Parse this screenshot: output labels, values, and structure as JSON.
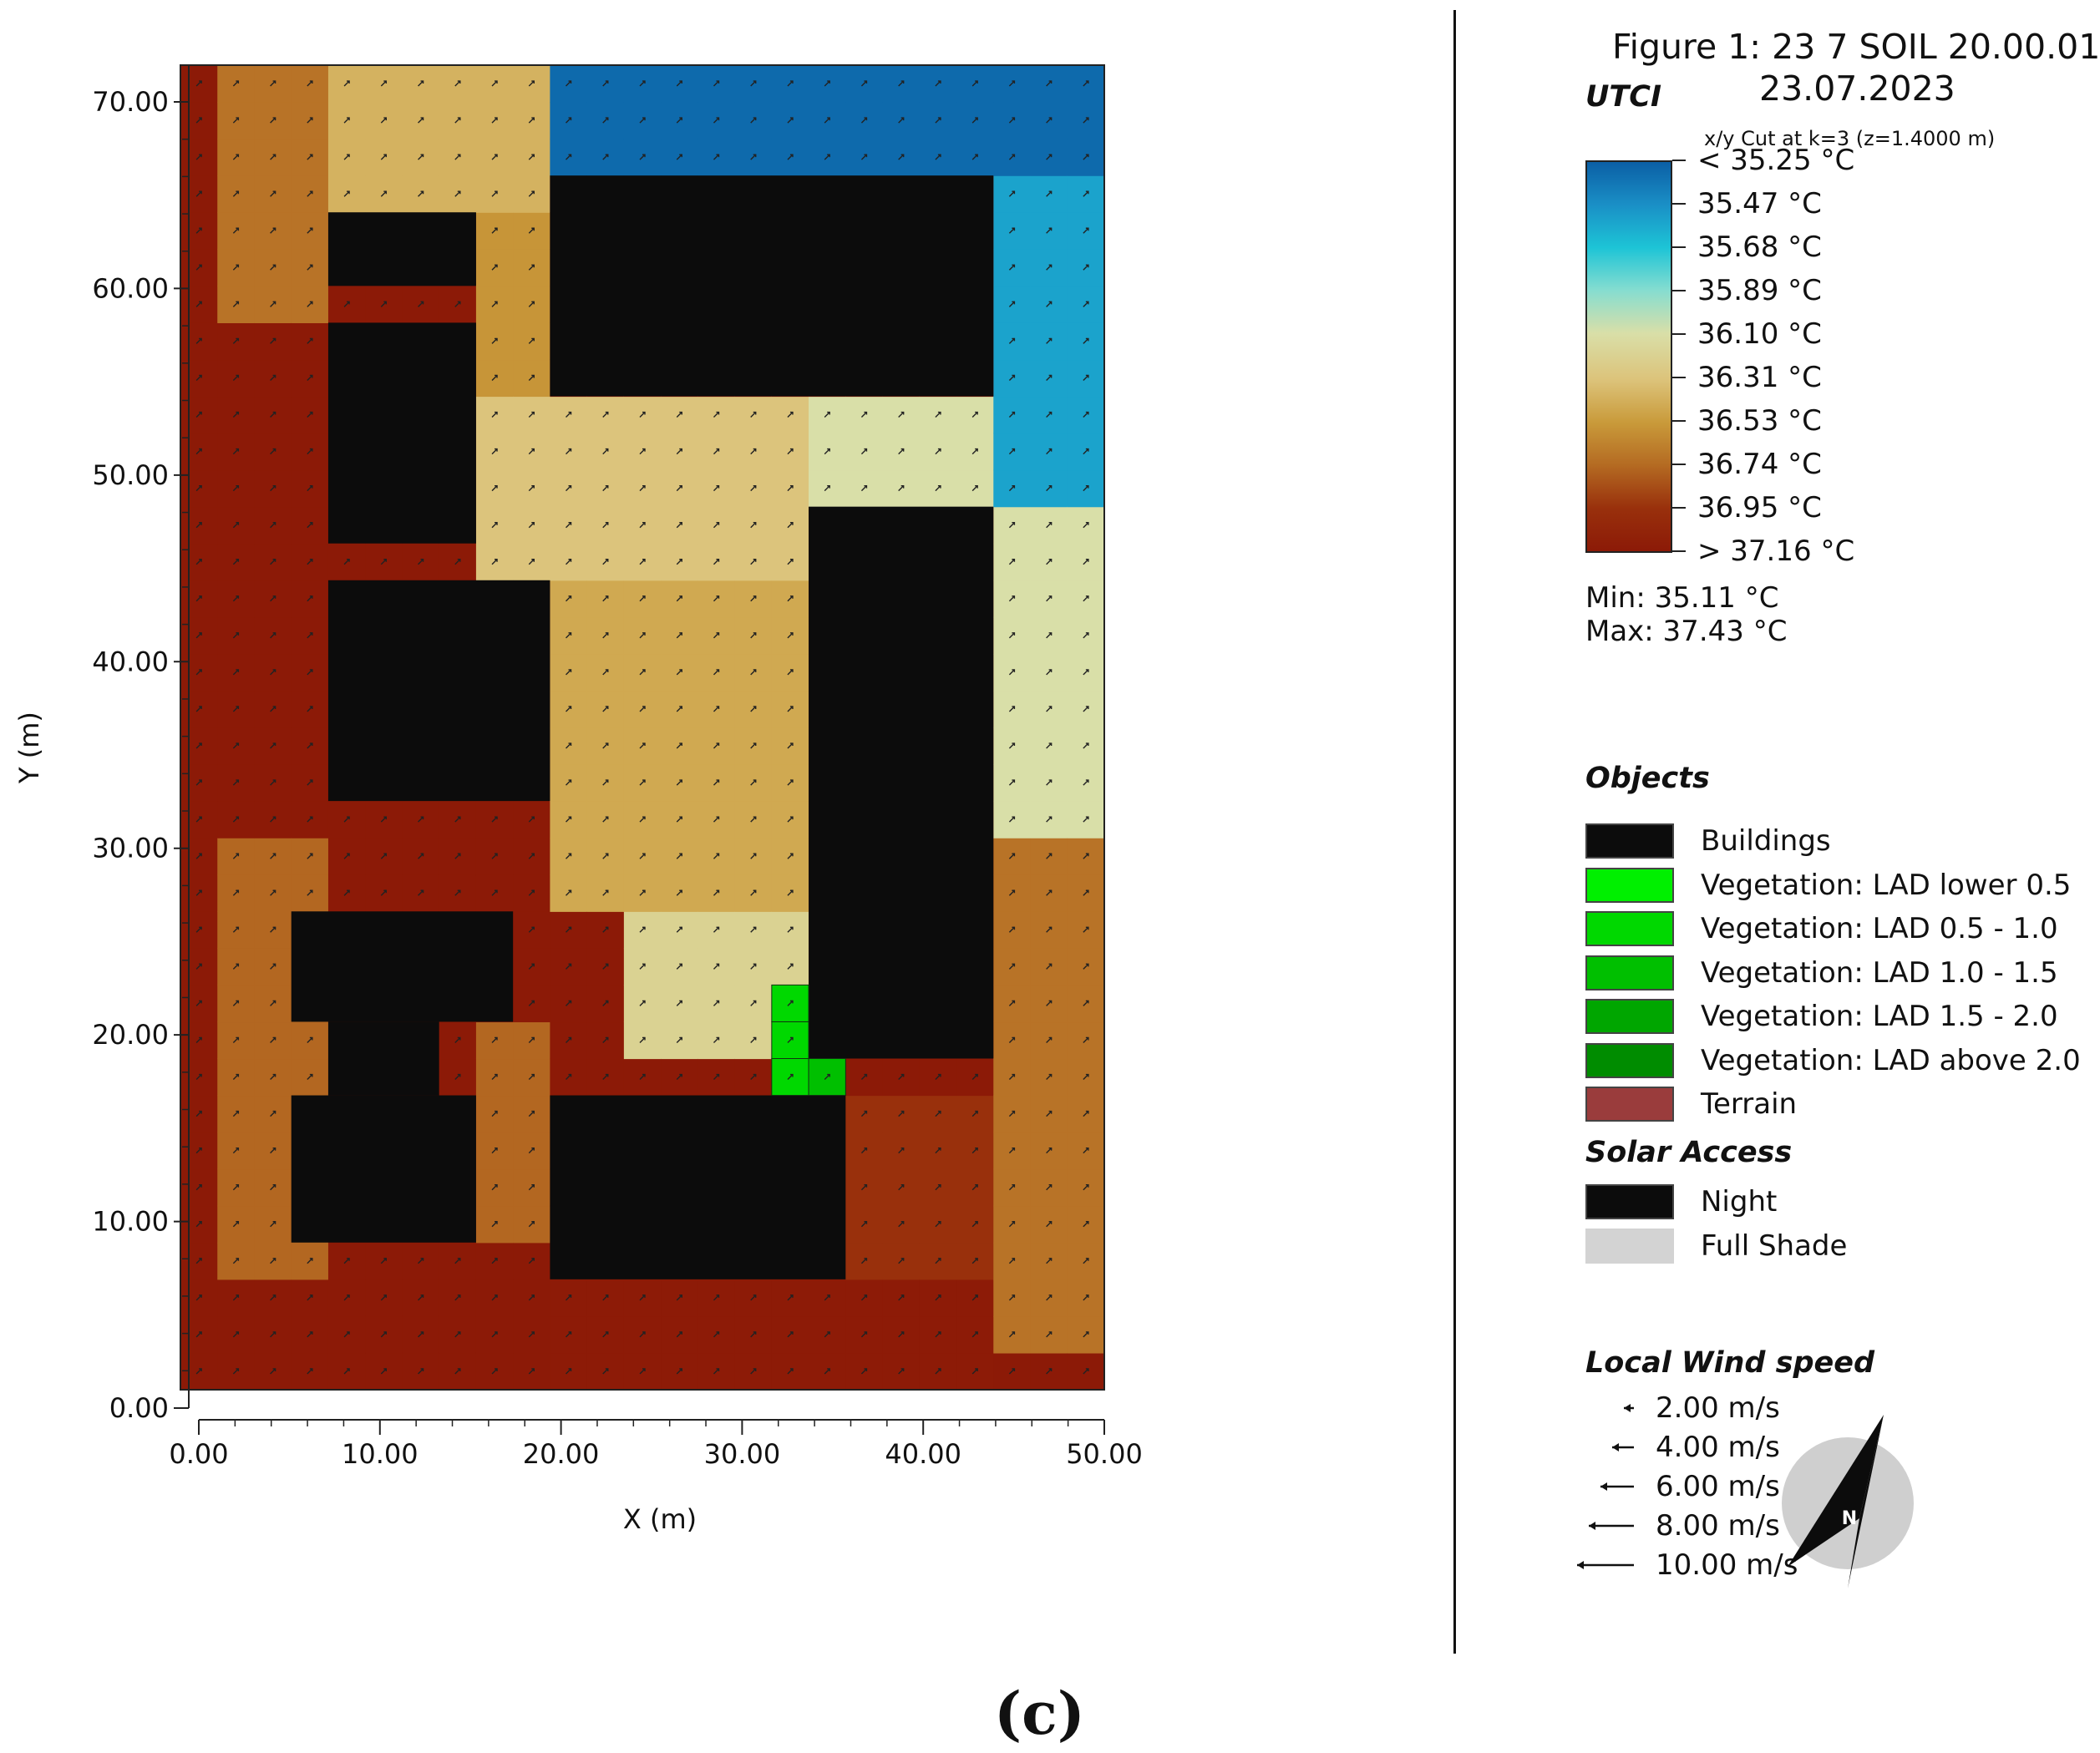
{
  "figure": {
    "title": "Figure 1: 23 7 SOIL 20.00.01",
    "date": "23.07.2023",
    "cut_info": "x/y Cut at k=3 (z=1.4000 m)",
    "caption": "(c)"
  },
  "legend": {
    "utci_title": "UTCI",
    "colorbar_labels": [
      "< 35.25 °C",
      "35.47  °C",
      "35.68  °C",
      "35.89  °C",
      "36.10  °C",
      "36.31  °C",
      "36.53  °C",
      "36.74  °C",
      "36.95  °C",
      "> 37.16 °C"
    ],
    "colorbar_colors": [
      "#0b5fa5",
      "#1a8fc6",
      "#1dc4d6",
      "#86ddd0",
      "#d9dfa8",
      "#dcc37a",
      "#c99a3a",
      "#b46a22",
      "#99300c",
      "#8c1a07"
    ],
    "min_text": "Min: 35.11 °C",
    "max_text": "Max: 37.43 °C",
    "objects_title": "Objects",
    "objects": [
      {
        "label": "Buildings",
        "color": "#0c0c0c"
      },
      {
        "label": "Vegetation: LAD lower 0.5",
        "color": "#00f000"
      },
      {
        "label": "Vegetation:  LAD 0.5 - 1.0",
        "color": "#00d800"
      },
      {
        "label": "Vegetation:  LAD 1.0 - 1.5",
        "color": "#00bf00"
      },
      {
        "label": "Vegetation:  LAD 1.5 - 2.0",
        "color": "#00a600"
      },
      {
        "label": "Vegetation:  LAD above 2.0",
        "color": "#008c00"
      },
      {
        "label": "Terrain",
        "color": "#9a3c3c"
      }
    ],
    "solar_title": "Solar Access",
    "solar": [
      {
        "label": "Night",
        "color": "#0c0c0c"
      },
      {
        "label": "Full Shade",
        "color": "#d3d3d3"
      }
    ],
    "wind_title": "Local Wind speed",
    "wind": [
      "2.00 m/s",
      "4.00 m/s",
      "6.00 m/s",
      "8.00 m/s",
      "10.00 m/s"
    ],
    "north_label": "N"
  },
  "chart_data": {
    "type": "heatmap",
    "variable": "UTCI (°C)",
    "xlabel": "X (m)",
    "ylabel": "Y (m)",
    "xlim": [
      0,
      50
    ],
    "ylim": [
      0,
      72
    ],
    "x_ticks": [
      "0.00",
      "10.00",
      "20.00",
      "30.00",
      "40.00",
      "50.00"
    ],
    "y_ticks": [
      "0.00",
      "10.00",
      "20.00",
      "30.00",
      "40.00",
      "50.00",
      "60.00",
      "70.00"
    ],
    "min": 35.11,
    "max": 37.43,
    "buildings": [
      {
        "x": [
          20,
          44
        ],
        "y": [
          54,
          66
        ]
      },
      {
        "x": [
          8,
          16
        ],
        "y": [
          60,
          64
        ]
      },
      {
        "x": [
          8,
          16
        ],
        "y": [
          46,
          58
        ]
      },
      {
        "x": [
          8,
          20
        ],
        "y": [
          32,
          44
        ]
      },
      {
        "x": [
          34,
          44
        ],
        "y": [
          18,
          48
        ]
      },
      {
        "x": [
          6,
          18
        ],
        "y": [
          20,
          26
        ]
      },
      {
        "x": [
          8,
          14
        ],
        "y": [
          16,
          20
        ]
      },
      {
        "x": [
          6,
          16
        ],
        "y": [
          8,
          16
        ]
      },
      {
        "x": [
          20,
          36
        ],
        "y": [
          6,
          16
        ]
      }
    ],
    "vegetation": [
      {
        "x": [
          32,
          34
        ],
        "y": [
          16,
          22
        ],
        "class": "LAD 0.5 - 1.0"
      },
      {
        "x": [
          34,
          36
        ],
        "y": [
          16,
          18
        ],
        "class": "LAD 1.0 - 1.5"
      }
    ],
    "value_zones": [
      {
        "x": [
          0,
          50
        ],
        "y": [
          0,
          72
        ],
        "utci": 37.3
      },
      {
        "x": [
          2,
          8
        ],
        "y": [
          6,
          30
        ],
        "utci": 36.75
      },
      {
        "x": [
          2,
          8
        ],
        "y": [
          58,
          72
        ],
        "utci": 36.7
      },
      {
        "x": [
          8,
          20
        ],
        "y": [
          64,
          72
        ],
        "utci": 36.4
      },
      {
        "x": [
          16,
          20
        ],
        "y": [
          54,
          64
        ],
        "utci": 36.55
      },
      {
        "x": [
          16,
          20
        ],
        "y": [
          8,
          20
        ],
        "utci": 36.75
      },
      {
        "x": [
          16,
          34
        ],
        "y": [
          44,
          54
        ],
        "utci": 36.3
      },
      {
        "x": [
          34,
          44
        ],
        "y": [
          48,
          54
        ],
        "utci": 36.1
      },
      {
        "x": [
          20,
          34
        ],
        "y": [
          26,
          44
        ],
        "utci": 36.45
      },
      {
        "x": [
          24,
          34
        ],
        "y": [
          18,
          26
        ],
        "utci": 36.2
      },
      {
        "x": [
          36,
          44
        ],
        "y": [
          2,
          16
        ],
        "utci": 36.95
      },
      {
        "x": [
          44,
          50
        ],
        "y": [
          2,
          30
        ],
        "utci": 36.7
      },
      {
        "x": [
          44,
          50
        ],
        "y": [
          30,
          48
        ],
        "utci": 36.1
      },
      {
        "x": [
          20,
          50
        ],
        "y": [
          66,
          72
        ],
        "utci": 35.3
      },
      {
        "x": [
          44,
          50
        ],
        "y": [
          48,
          66
        ],
        "utci": 35.55
      },
      {
        "x": [
          20,
          44
        ],
        "y": [
          0,
          6
        ],
        "utci": 37.15
      }
    ]
  }
}
